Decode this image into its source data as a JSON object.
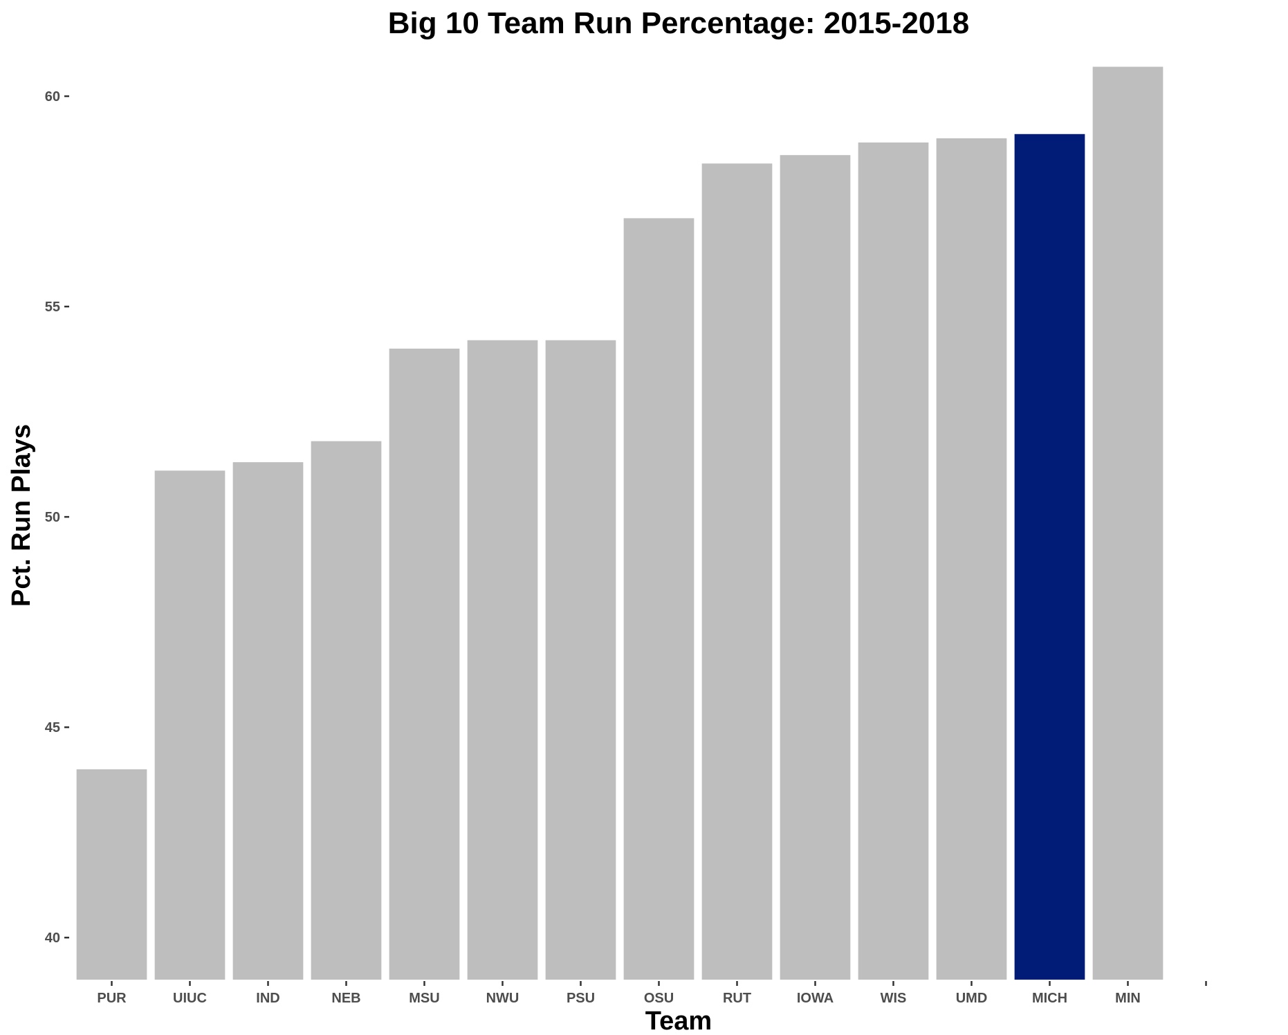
{
  "chart_data": {
    "type": "bar",
    "title": "Big 10 Team Run Percentage: 2015-2018",
    "xlabel": "Team",
    "ylabel": "Pct. Run Plays",
    "categories": [
      "PUR",
      "UIUC",
      "IND",
      "NEB",
      "MSU",
      "NWU",
      "PSU",
      "OSU",
      "RUT",
      "IOWA",
      "WIS",
      "UMD",
      "MICH",
      "MIN",
      ""
    ],
    "values": [
      44.0,
      51.1,
      51.3,
      51.8,
      54.0,
      54.2,
      54.2,
      57.1,
      58.4,
      58.6,
      58.9,
      59.0,
      59.1,
      60.7,
      null
    ],
    "ylim": [
      39,
      61.3
    ],
    "yticks": [
      40,
      45,
      50,
      55,
      60
    ],
    "grid": false,
    "legend": "none",
    "colors": {
      "default_bar": "#bebebe",
      "highlight_bar": "#001c77",
      "tick_text": "#4d4d4d"
    },
    "highlight": "MICH"
  }
}
